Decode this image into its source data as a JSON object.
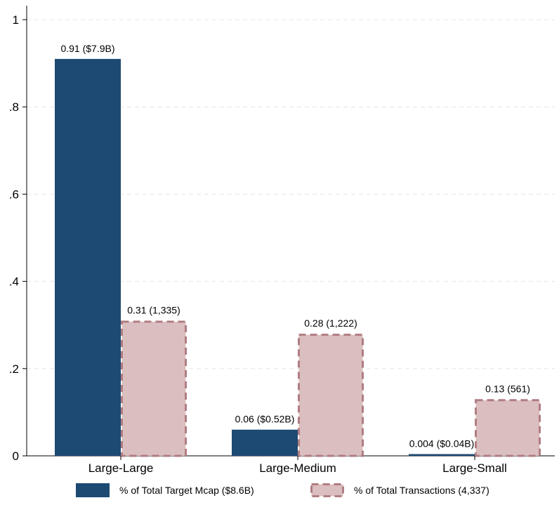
{
  "chart_data": {
    "type": "bar",
    "categories": [
      "Large-Large",
      "Large-Medium",
      "Large-Small"
    ],
    "series": [
      {
        "name": "% of Total Target Mcap ($8.6B)",
        "values": [
          0.91,
          0.06,
          0.004
        ],
        "labels": [
          "0.91 ($7.9B)",
          "0.06 ($0.52B)",
          "0.004 ($0.04B)"
        ],
        "color": "#1d4a73",
        "style": "solid"
      },
      {
        "name": "% of Total Transactions (4,337)",
        "values": [
          0.31,
          0.28,
          0.13
        ],
        "labels": [
          "0.31 (1,335)",
          "0.28 (1,222)",
          "0.13 (561)"
        ],
        "color": "#dbbfc0",
        "edge_color": "#b07d82",
        "style": "dashed"
      }
    ],
    "y_ticks": [
      {
        "value": 0,
        "label": "0"
      },
      {
        "value": 0.2,
        "label": ".2"
      },
      {
        "value": 0.4,
        "label": ".4"
      },
      {
        "value": 0.6,
        "label": ".6"
      },
      {
        "value": 0.8,
        "label": ".8"
      },
      {
        "value": 1,
        "label": "1"
      }
    ],
    "ylim": [
      0,
      1.03
    ],
    "title": "",
    "xlabel": "",
    "ylabel": "",
    "grid": "horizontal-dashed",
    "legend_position": "bottom"
  }
}
